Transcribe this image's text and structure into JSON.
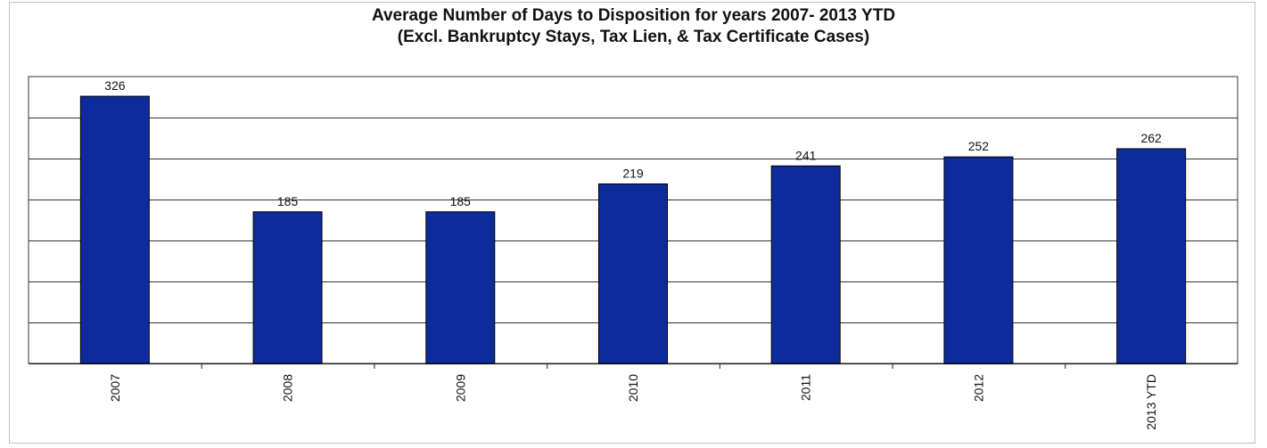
{
  "chart_data": {
    "type": "bar",
    "title": "Average Number of Days to Disposition  for years 2007- 2013 YTD",
    "subtitle": "(Excl. Bankruptcy Stays, Tax Lien, & Tax Certificate Cases)",
    "categories": [
      "2007",
      "2008",
      "2009",
      "2010",
      "2011",
      "2012",
      "2013 YTD"
    ],
    "values": [
      326,
      185,
      185,
      219,
      241,
      252,
      262
    ],
    "xlabel": "",
    "ylabel": "",
    "ylim": [
      0,
      350
    ],
    "grid": true,
    "legend": "none",
    "bar_color": "#0d2b9a",
    "bar_edge_color": "#000000"
  }
}
